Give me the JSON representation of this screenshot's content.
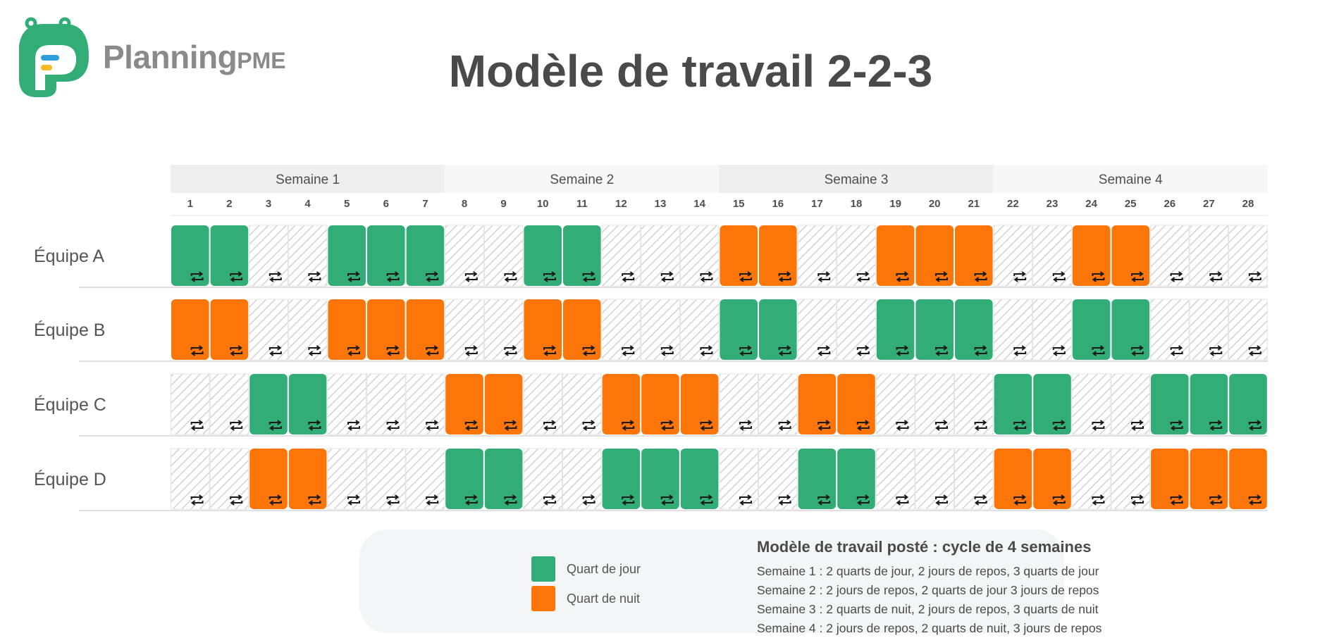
{
  "brand": {
    "logo_main": "Planning",
    "logo_sub": "PME",
    "colors": {
      "green": "#32ad78",
      "orange": "#fb7508",
      "logo_blue": "#2c9fdc",
      "logo_yellow": "#f7b924"
    }
  },
  "title": "Modèle de travail 2-2-3",
  "weeks": [
    "Semaine 1",
    "Semaine 2",
    "Semaine 3",
    "Semaine 4"
  ],
  "days": [
    "1",
    "2",
    "3",
    "4",
    "5",
    "6",
    "7",
    "8",
    "9",
    "10",
    "11",
    "12",
    "13",
    "14",
    "15",
    "16",
    "17",
    "18",
    "19",
    "20",
    "21",
    "22",
    "23",
    "24",
    "25",
    "26",
    "27",
    "28"
  ],
  "colors": {
    "day_shift": "#32ad78",
    "night_shift": "#fb7508",
    "rest_hatch": "#c4c4c4"
  },
  "teams": [
    {
      "name": "Équipe A",
      "shifts": [
        "J",
        "J",
        "R",
        "R",
        "J",
        "J",
        "J",
        "R",
        "R",
        "J",
        "J",
        "R",
        "R",
        "R",
        "N",
        "N",
        "R",
        "R",
        "N",
        "N",
        "N",
        "R",
        "R",
        "N",
        "N",
        "R",
        "R",
        "R"
      ]
    },
    {
      "name": "Équipe B",
      "shifts": [
        "N",
        "N",
        "R",
        "R",
        "N",
        "N",
        "N",
        "R",
        "R",
        "N",
        "N",
        "R",
        "R",
        "R",
        "J",
        "J",
        "R",
        "R",
        "J",
        "J",
        "J",
        "R",
        "R",
        "J",
        "J",
        "R",
        "R",
        "R"
      ]
    },
    {
      "name": "Équipe C",
      "shifts": [
        "R",
        "R",
        "J",
        "J",
        "R",
        "R",
        "R",
        "N",
        "N",
        "R",
        "R",
        "N",
        "N",
        "N",
        "R",
        "R",
        "N",
        "N",
        "R",
        "R",
        "R",
        "J",
        "J",
        "R",
        "R",
        "J",
        "J",
        "J"
      ]
    },
    {
      "name": "Équipe D",
      "shifts": [
        "R",
        "R",
        "N",
        "N",
        "R",
        "R",
        "R",
        "J",
        "J",
        "R",
        "R",
        "J",
        "J",
        "J",
        "R",
        "R",
        "J",
        "J",
        "R",
        "R",
        "R",
        "N",
        "N",
        "R",
        "R",
        "N",
        "N",
        "N"
      ]
    }
  ],
  "shift_icon": "swap-arrows-icon",
  "legend": {
    "day_label": "Quart de jour",
    "night_label": "Quart de nuit"
  },
  "description": {
    "title": "Modèle de travail posté : cycle de 4 semaines",
    "lines": [
      "Semaine 1 : 2 quarts de jour, 2 jours de repos, 3 quarts de jour",
      "Semaine 2 : 2 jours de repos, 2 quarts de jour 3 jours de repos",
      "Semaine 3 : 2 quarts de nuit, 2 jours de repos, 3 quarts de nuit",
      "Semaine 4 : 2 jours de repos, 2 quarts de nuit, 3 jours de repos"
    ]
  }
}
